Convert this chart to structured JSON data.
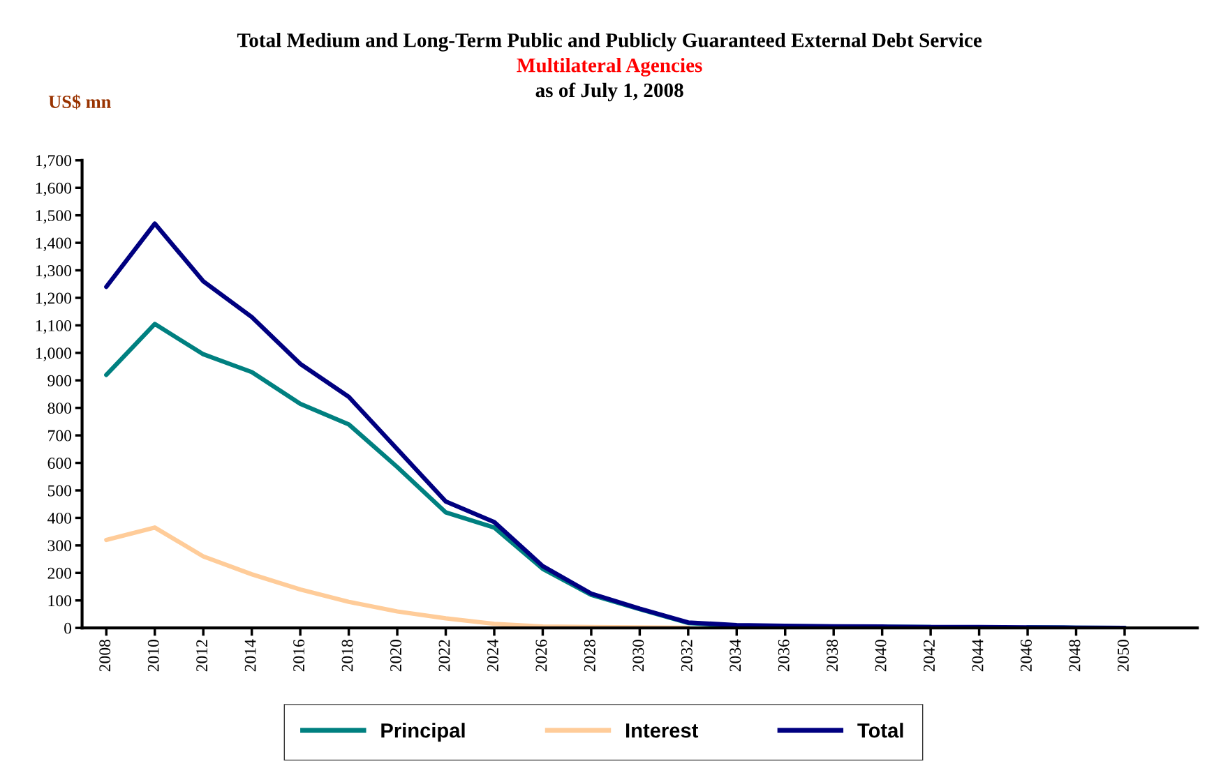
{
  "chart_data": {
    "type": "line",
    "title": "Total Medium and Long-Term Public and Publicly Guaranteed External Debt Service",
    "subtitle": "Multilateral Agencies",
    "annotations": [
      "as of July 1, 2008"
    ],
    "ylabel": "US$ mn",
    "x": [
      2008,
      2010,
      2012,
      2014,
      2016,
      2018,
      2020,
      2022,
      2024,
      2026,
      2028,
      2030,
      2032,
      2034,
      2036,
      2038,
      2040,
      2042,
      2044,
      2046,
      2048,
      2050
    ],
    "series": [
      {
        "name": "Principal",
        "color": "#008080",
        "values": [
          920,
          1105,
          995,
          930,
          815,
          740,
          585,
          420,
          365,
          215,
          120,
          68,
          18,
          8,
          6,
          5,
          4,
          3,
          null,
          2,
          1,
          0
        ]
      },
      {
        "name": "Interest",
        "color": "#ffcc99",
        "values": [
          320,
          365,
          260,
          195,
          140,
          95,
          60,
          35,
          15,
          5,
          3,
          2,
          1,
          null,
          null,
          null,
          null,
          null,
          null,
          null,
          null,
          null
        ]
      },
      {
        "name": "Total",
        "color": "#000080",
        "values": [
          1240,
          1470,
          1260,
          1130,
          960,
          840,
          650,
          460,
          385,
          225,
          125,
          70,
          20,
          10,
          8,
          6,
          5,
          3,
          3,
          2,
          1,
          0
        ]
      }
    ],
    "xlim": [
      2007,
      2053
    ],
    "xticks": [
      2008,
      2010,
      2012,
      2014,
      2016,
      2018,
      2020,
      2022,
      2024,
      2026,
      2028,
      2030,
      2032,
      2034,
      2036,
      2038,
      2040,
      2042,
      2044,
      2046,
      2048,
      2050
    ],
    "ylim": [
      0,
      1700
    ],
    "yticks": [
      0,
      {
        "value": 100,
        "label": "100"
      },
      {
        "value": 200,
        "label": "200"
      },
      {
        "value": 300,
        "label": "300"
      },
      {
        "value": 400,
        "label": "400"
      },
      {
        "value": 500,
        "label": "500"
      },
      {
        "value": 600,
        "label": "600"
      },
      {
        "value": 700,
        "label": "700"
      },
      {
        "value": 800,
        "label": "800"
      },
      {
        "value": 900,
        "label": "900"
      },
      {
        "value": 1000,
        "label": "1,000"
      },
      {
        "value": 1100,
        "label": "1,100"
      },
      {
        "value": 1200,
        "label": "1,200"
      },
      {
        "value": 1300,
        "label": "1,300"
      },
      {
        "value": 1400,
        "label": "1,400"
      },
      {
        "value": 1500,
        "label": "1,500"
      },
      {
        "value": 1600,
        "label": "1,600"
      },
      {
        "value": 1700,
        "label": "1,700"
      }
    ],
    "grid": false,
    "legend": "bottom",
    "marker": "none",
    "line_style": "solid"
  }
}
